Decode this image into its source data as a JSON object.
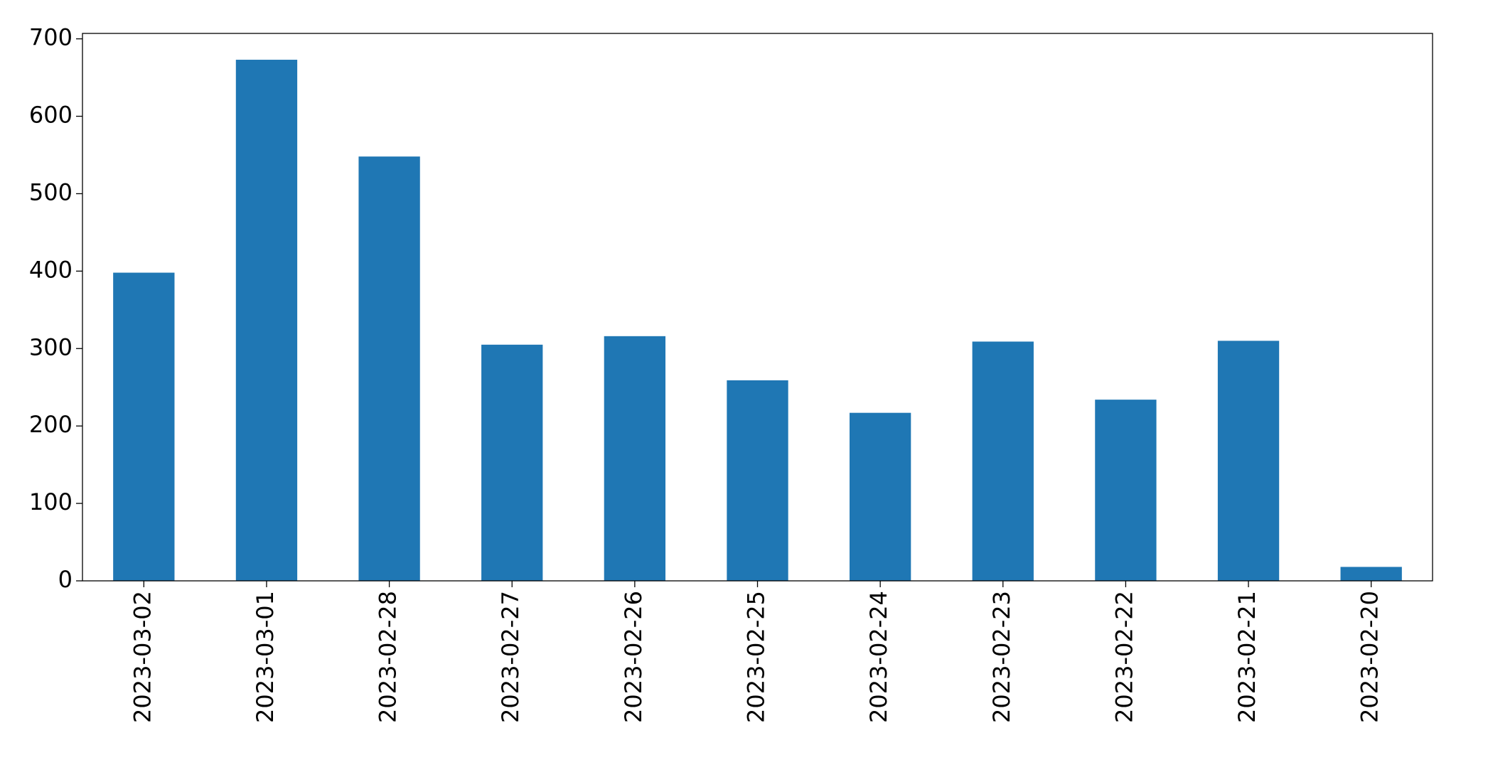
{
  "chart_data": {
    "type": "bar",
    "categories": [
      "2023-03-02",
      "2023-03-01",
      "2023-02-28",
      "2023-02-27",
      "2023-02-26",
      "2023-02-25",
      "2023-02-24",
      "2023-02-23",
      "2023-02-22",
      "2023-02-21",
      "2023-02-20"
    ],
    "values": [
      398,
      673,
      548,
      305,
      316,
      259,
      217,
      309,
      234,
      310,
      18
    ],
    "color": "#1f77b4",
    "ylim": [
      0,
      707
    ],
    "yticks": [
      0,
      100,
      200,
      300,
      400,
      500,
      600,
      700
    ],
    "grid": false
  }
}
